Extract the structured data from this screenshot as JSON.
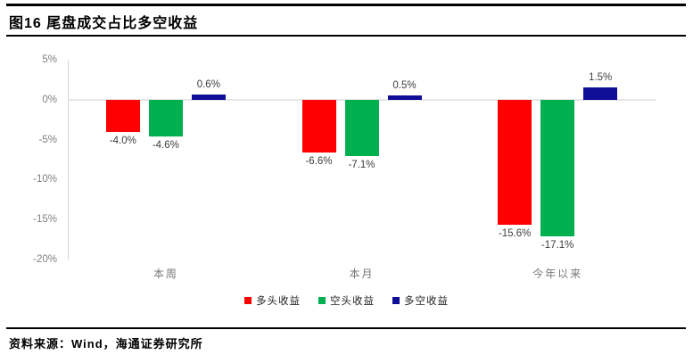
{
  "header": {
    "title": "图16 尾盘成交占比多空收益"
  },
  "chart_data": {
    "type": "bar",
    "title": "图16 尾盘成交占比多空收益",
    "categories": [
      "本周",
      "本月",
      "今年以来"
    ],
    "series": [
      {
        "name": "多头收益",
        "color": "#ff0000",
        "values": [
          -4.0,
          -6.6,
          -15.6
        ],
        "labels": [
          "-4.0%",
          "-6.6%",
          "-15.6%"
        ]
      },
      {
        "name": "空头收益",
        "color": "#00b050",
        "values": [
          -4.6,
          -7.1,
          -17.1
        ],
        "labels": [
          "-4.6%",
          "-7.1%",
          "-17.1%"
        ]
      },
      {
        "name": "多空收益",
        "color": "#0e0e96",
        "values": [
          0.6,
          0.5,
          1.5
        ],
        "labels": [
          "0.6%",
          "0.5%",
          "1.5%"
        ]
      }
    ],
    "y_axis": {
      "ticks": [
        "5%",
        "0%",
        "-5%",
        "-10%",
        "-15%",
        "-20%"
      ],
      "tick_values": [
        5,
        0,
        -5,
        -10,
        -15,
        -20
      ],
      "min": -20,
      "max": 5
    },
    "grid": "zero-line-only",
    "legend_position": "bottom",
    "xlabel": "",
    "ylabel": ""
  },
  "footer": {
    "source": "资料来源：Wind，海通证券研究所"
  }
}
